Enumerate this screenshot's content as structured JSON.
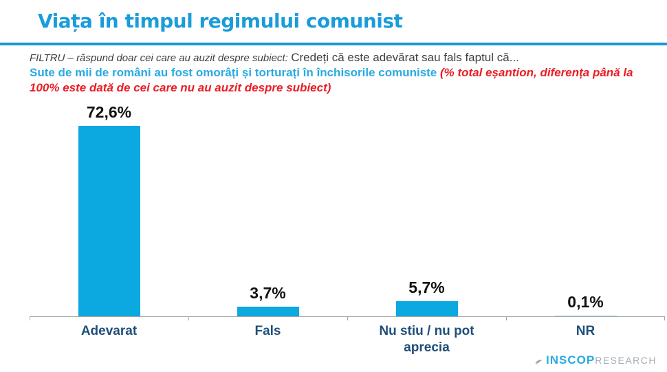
{
  "header": {
    "title": "Viața în timpul regimului comunist"
  },
  "filter": {
    "italic": "FILTRU – răspund doar cei care au auzit despre subiect:",
    "normal": "Credeți că este adevărat sau fals faptul că..."
  },
  "question": {
    "statement": "Sute de mii de români au fost omorâți și torturați în închisorile comuniste",
    "note": "(% total eșantion, diferența până la 100% este dată de cei care nu au auzit despre subiect)"
  },
  "chart_data": {
    "type": "bar",
    "categories": [
      "Adevarat",
      "Fals",
      "Nu stiu / nu pot aprecia",
      "NR"
    ],
    "values": [
      72.6,
      3.7,
      5.7,
      0.1
    ],
    "value_labels": [
      "72,6%",
      "3,7%",
      "5,7%",
      "0,1%"
    ],
    "title": "",
    "xlabel": "",
    "ylabel": "% total eșantion",
    "ylim": [
      0,
      80
    ],
    "grid": false,
    "legend": false,
    "bar_color": "#0ca8e0",
    "axis_color": "#a6a6a6",
    "category_label_color": "#1f4e79",
    "value_label_color": "#111111"
  },
  "colors": {
    "title_blue": "#1a9cdb",
    "statement_blue": "#29abe2",
    "note_red": "#ec1c24",
    "body_gray": "#3f3f3f"
  },
  "logo": {
    "brand": "INSCOP",
    "suffix": "RESEARCH"
  }
}
